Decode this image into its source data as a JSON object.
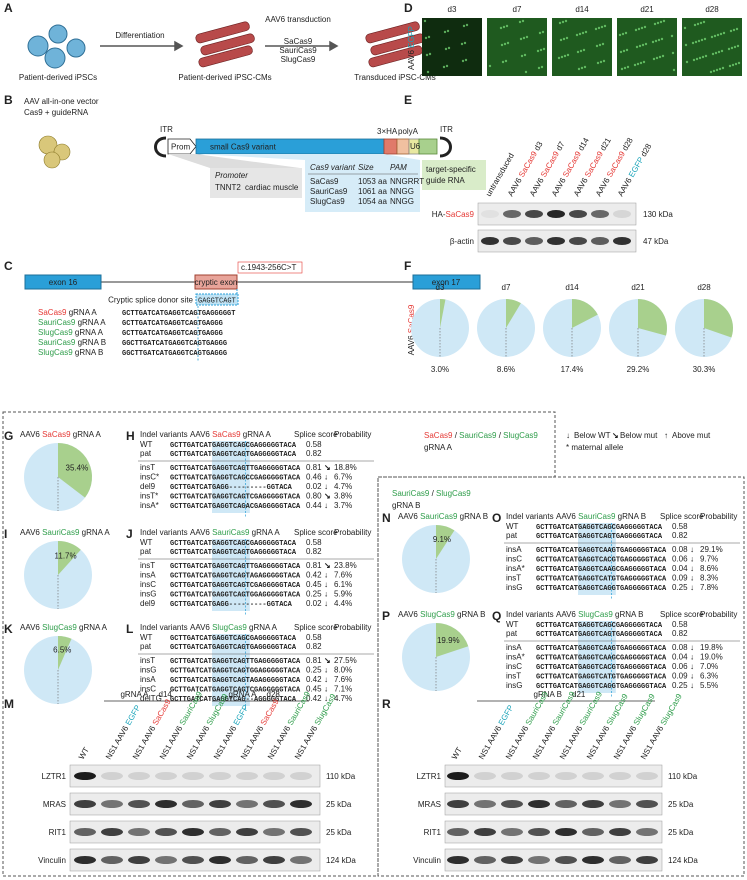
{
  "colors": {
    "SaCas9": "#e53935",
    "SauriCas9": "#2e9d4a",
    "SlugCas9": "#2e9d4a",
    "EGFP": "#17a2b8"
  },
  "panel_a": {
    "letter": "A",
    "source": "Patient-derived iPSCs",
    "step1": "Differentiation",
    "intermediate": "Patient-derived iPSC-CMs",
    "step2": "AAV6 transduction",
    "variants": [
      "SaCas9",
      "SauriCas9",
      "SlugCas9"
    ],
    "result": "Transduced iPSC-CMs"
  },
  "panel_b": {
    "letter": "B",
    "title": [
      "AAV all-in-one vector",
      "Cas9 + guideRNA"
    ],
    "itr": "ITR",
    "prom": "Prom",
    "cas9": "small Cas9 variant",
    "tag": "3×HA",
    "polya": "polyA",
    "u6": "U6",
    "promoter_header": "Promoter",
    "promoter": [
      "TNNT2",
      "cardiac muscle"
    ],
    "table_header": [
      "Cas9 variant",
      "Size",
      "PAM"
    ],
    "table_rows": [
      [
        "SaCas9",
        "1053 aa",
        "NNGRRT"
      ],
      [
        "SauriCas9",
        "1061 aa",
        "NNGG"
      ],
      [
        "SlugCas9",
        "1054 aa",
        "NNGG"
      ]
    ],
    "guide": [
      "target-specific",
      "guide RNA"
    ]
  },
  "panel_c": {
    "letter": "C",
    "exon_left": "exon 16",
    "cryptic": "cryptic exon",
    "mutation": "c.1943-256C>T",
    "exon_right": "exon 17",
    "site_label": "Cryptic splice donor site",
    "site": "GAGGTCAGT",
    "guides": [
      {
        "name": [
          "SaCas9",
          " gRNA A"
        ],
        "seq": "GCTTGATCATGAGGTCAGTGAGGGGGT"
      },
      {
        "name": [
          "SauriCas9",
          " gRNA A"
        ],
        "seq": "GCTTGATCATGAGGTCAGTGAGGG"
      },
      {
        "name": [
          "SlugCas9",
          " gRNA A"
        ],
        "seq": "GCTTGATCATGAGGTCAGTGAGGG"
      },
      {
        "name": [
          "SauriCas9",
          " gRNA B"
        ],
        "seq": "GGCTTGATCATGAGGTCAGTGAGGG"
      },
      {
        "name": [
          "SlugCas9",
          " gRNA B"
        ],
        "seq": "GGCTTGATCATGAGGTCAGTGAGGG"
      }
    ]
  },
  "panel_d": {
    "letter": "D",
    "label": [
      "AAV6 ",
      "EGFP"
    ],
    "days": [
      "d3",
      "d7",
      "d14",
      "d21",
      "d28"
    ]
  },
  "panel_e": {
    "letter": "E",
    "lanes": [
      "untransduced",
      [
        "AAV6 ",
        "SaCas9",
        " d3"
      ],
      [
        "AAV6 ",
        "SaCas9",
        " d7"
      ],
      [
        "AAV6 ",
        "SaCas9",
        " d14"
      ],
      [
        "AAV6 ",
        "SaCas9",
        " d21"
      ],
      [
        "AAV6 ",
        "SaCas9",
        " d28"
      ],
      [
        "AAV6 ",
        "EGFP",
        " d28"
      ]
    ],
    "bands": [
      {
        "name": [
          "HA-",
          "SaCas9"
        ],
        "size": "130 kDa"
      },
      {
        "name": "β-actin",
        "size": "47 kDa"
      }
    ]
  },
  "panel_f": {
    "letter": "F",
    "label": [
      "AAV6 ",
      "SaCas9"
    ],
    "days": [
      "d3",
      "d7",
      "d14",
      "d21",
      "d28"
    ],
    "values": [
      3.0,
      8.6,
      17.4,
      29.2,
      30.3
    ],
    "value_labels": [
      "3.0%",
      "8.6%",
      "17.4%",
      "29.2%",
      "30.3%"
    ]
  },
  "legend": {
    "group_a": [
      "SaCas9",
      " / ",
      "SauriCas9",
      " / ",
      "SlugCas9"
    ],
    "group_a_guide": "gRNA A",
    "group_b": [
      "SauriCas9",
      " / ",
      "SlugCas9"
    ],
    "group_b_guide": "gRNA B",
    "arrows": [
      {
        "arrow": "↓",
        "label": "Below WT",
        "color": "#2e9d4a"
      },
      {
        "arrow": "↘",
        "label": "Below mut",
        "color": "#9acd32"
      },
      {
        "arrow": "↑",
        "label": "Above mut",
        "color": "#e53935"
      }
    ],
    "note": "* maternal allele"
  },
  "pies": [
    {
      "letter": "G",
      "title": [
        "AAV6 ",
        "SaCas9",
        " gRNA A"
      ],
      "value": 35.4,
      "value_label": "35.4%"
    },
    {
      "letter": "I",
      "title": [
        "AAV6 ",
        "SauriCas9",
        " gRNA A"
      ],
      "value": 11.7,
      "value_label": "11.7%"
    },
    {
      "letter": "K",
      "title": [
        "AAV6 ",
        "SlugCas9",
        " gRNA A"
      ],
      "value": 6.5,
      "value_label": "6.5%"
    },
    {
      "letter": "N",
      "title": [
        "AAV6 ",
        "SauriCas9",
        " gRNA B"
      ],
      "value": 9.1,
      "value_label": "9.1%"
    },
    {
      "letter": "P",
      "title": [
        "AAV6 ",
        "SlugCas9",
        " gRNA B"
      ],
      "value": 19.9,
      "value_label": "19.9%"
    }
  ],
  "tables": [
    {
      "letter": "H",
      "columns": [
        "Indel variants",
        "Splice score",
        "Probability"
      ],
      "title": [
        "AAV6 ",
        "SaCas9",
        " gRNA A"
      ],
      "reference": [
        {
          "name": "WT",
          "seq": "GCTTGATCATGAGGTCAGCGAGGGGGTACA",
          "score": "0.58"
        },
        {
          "name": "pat",
          "seq": "GCTTGATCATGAGGTCAGTGAGGGGGTACA",
          "score": "0.82"
        }
      ],
      "rows": [
        {
          "name": "insT",
          "seq": "GCTTGATCATGAGGTCAGTTGAGGGGGTACA",
          "score": "0.81",
          "arrow": "↘",
          "prob": "18.8%"
        },
        {
          "name": "insC*",
          "seq": "GCTTGATCATGAGGTCAGCCGAGGGGGTACA",
          "score": "0.46",
          "arrow": "↓",
          "prob": "6.7%"
        },
        {
          "name": "del9",
          "seq": "GCTTGATCATGAGG---------GGTACA",
          "score": "0.02",
          "arrow": "↓",
          "prob": "4.7%"
        },
        {
          "name": "insT*",
          "seq": "GCTTGATCATGAGGTCAGTCGAGGGGGTACA",
          "score": "0.80",
          "arrow": "↘",
          "prob": "3.8%"
        },
        {
          "name": "insA*",
          "seq": "GCTTGATCATGAGGTCAGACGAGGGGGTACA",
          "score": "0.44",
          "arrow": "↓",
          "prob": "3.7%"
        }
      ]
    },
    {
      "letter": "J",
      "columns": [
        "Indel variants",
        "Splice score",
        "Probability"
      ],
      "title": [
        "AAV6 ",
        "SauriCas9",
        " gRNA A"
      ],
      "reference": [
        {
          "name": "WT",
          "seq": "GCTTGATCATGAGGTCAGCGAGGGGGTACA",
          "score": "0.58"
        },
        {
          "name": "pat",
          "seq": "GCTTGATCATGAGGTCAGTGAGGGGGTACA",
          "score": "0.82"
        }
      ],
      "rows": [
        {
          "name": "insT",
          "seq": "GCTTGATCATGAGGTCAGTTGAGGGGGTACA",
          "score": "0.81",
          "arrow": "↘",
          "prob": "23.8%"
        },
        {
          "name": "insA",
          "seq": "GCTTGATCATGAGGTCAGTAGAGGGGGTACA",
          "score": "0.42",
          "arrow": "↓",
          "prob": "7.6%"
        },
        {
          "name": "insC",
          "seq": "GCTTGATCATGAGGTCAGTCGAGGGGGTACA",
          "score": "0.45",
          "arrow": "↓",
          "prob": "6.1%"
        },
        {
          "name": "insG",
          "seq": "GCTTGATCATGAGGTCAGTGGAGGGGGTACA",
          "score": "0.25",
          "arrow": "↓",
          "prob": "5.9%"
        },
        {
          "name": "del9",
          "seq": "GCTTGATCATGAGG---------GGTACA",
          "score": "0.02",
          "arrow": "↓",
          "prob": "4.4%"
        }
      ]
    },
    {
      "letter": "L",
      "columns": [
        "Indel variants",
        "Splice score",
        "Probability"
      ],
      "title": [
        "AAV6 ",
        "SlugCas9",
        " gRNA A"
      ],
      "reference": [
        {
          "name": "WT",
          "seq": "GCTTGATCATGAGGTCAGCGAGGGGGTACA",
          "score": "0.58"
        },
        {
          "name": "pat",
          "seq": "GCTTGATCATGAGGTCAGTGAGGGGGTACA",
          "score": "0.82"
        }
      ],
      "rows": [
        {
          "name": "insT",
          "seq": "GCTTGATCATGAGGTCAGTTGAGGGGGTACA",
          "score": "0.81",
          "arrow": "↘",
          "prob": "27.5%"
        },
        {
          "name": "insG",
          "seq": "GCTTGATCATGAGGTCAGTGGAGGGGGTACA",
          "score": "0.25",
          "arrow": "↓",
          "prob": "8.0%"
        },
        {
          "name": "insA",
          "seq": "GCTTGATCATGAGGTCAGTAGAGGGGGTACA",
          "score": "0.42",
          "arrow": "↓",
          "prob": "7.6%"
        },
        {
          "name": "insC",
          "seq": "GCTTGATCATGAGGTCAGTCGAGGGGGTACA",
          "score": "0.45",
          "arrow": "↓",
          "prob": "7.1%"
        },
        {
          "name": "delTG",
          "seq": "GCTTGATCATGAGGTCAG--AGGGGGTACA",
          "score": "0.42",
          "arrow": "↓",
          "prob": "4.7%"
        }
      ]
    },
    {
      "letter": "O",
      "columns": [
        "Indel variants",
        "Splice score",
        "Probability"
      ],
      "title": [
        "AAV6 ",
        "SauriCas9",
        " gRNA B"
      ],
      "reference": [
        {
          "name": "WT",
          "seq": "GCTTGATCATGAGGTCAGCGAGGGGGTACA",
          "score": "0.58"
        },
        {
          "name": "pat",
          "seq": "GCTTGATCATGAGGTCAGTGAGGGGGTACA",
          "score": "0.82"
        }
      ],
      "rows": [
        {
          "name": "insA",
          "seq": "GCTTGATCATGAGGTCAAGTGAGGGGGTACA",
          "score": "0.08",
          "arrow": "↓",
          "prob": "29.1%"
        },
        {
          "name": "insC",
          "seq": "GCTTGATCATGAGGTCACGTGAGGGGGTACA",
          "score": "0.06",
          "arrow": "↓",
          "prob": "9.7%"
        },
        {
          "name": "insA*",
          "seq": "GCTTGATCATGAGGTCAAGCGAGGGGGTACA",
          "score": "0.04",
          "arrow": "↓",
          "prob": "8.6%"
        },
        {
          "name": "insT",
          "seq": "GCTTGATCATGAGGTCATGTGAGGGGGTACA",
          "score": "0.09",
          "arrow": "↓",
          "prob": "8.3%"
        },
        {
          "name": "insG",
          "seq": "GCTTGATCATGAGGTCAGGTGAGGGGGTACA",
          "score": "0.25",
          "arrow": "↓",
          "prob": "7.8%"
        }
      ]
    },
    {
      "letter": "Q",
      "columns": [
        "Indel variants",
        "Splice score",
        "Probability"
      ],
      "title": [
        "AAV6 ",
        "SlugCas9",
        " gRNA B"
      ],
      "reference": [
        {
          "name": "WT",
          "seq": "GCTTGATCATGAGGTCAGCGAGGGGGTACA",
          "score": "0.58"
        },
        {
          "name": "pat",
          "seq": "GCTTGATCATGAGGTCAGTGAGGGGGTACA",
          "score": "0.82"
        }
      ],
      "rows": [
        {
          "name": "insA",
          "seq": "GCTTGATCATGAGGTCAAGTGAGGGGGTACA",
          "score": "0.08",
          "arrow": "↓",
          "prob": "19.8%"
        },
        {
          "name": "insA*",
          "seq": "GCTTGATCATGAGGTCAAGCGAGGGGGTACA",
          "score": "0.04",
          "arrow": "↓",
          "prob": "19.0%"
        },
        {
          "name": "insC",
          "seq": "GCTTGATCATGAGGTCACGTGAGGGGGTACA",
          "score": "0.06",
          "arrow": "↓",
          "prob": "7.0%"
        },
        {
          "name": "insT",
          "seq": "GCTTGATCATGAGGTCATGTGAGGGGGTACA",
          "score": "0.09",
          "arrow": "↓",
          "prob": "6.3%"
        },
        {
          "name": "insG",
          "seq": "GCTTGATCATGAGGTCAGGTGAGGGGGTACA",
          "score": "0.25",
          "arrow": "↓",
          "prob": "5.5%"
        }
      ]
    }
  ],
  "blots": [
    {
      "letter": "M",
      "groups": [
        {
          "guide": "gRNA A",
          "day": "d14"
        },
        {
          "guide": "gRNA A",
          "day": "d28"
        }
      ],
      "lanes": [
        "WT",
        [
          "NS1 AAV6 ",
          "EGFP"
        ],
        [
          "NS1 AAV6 ",
          "SaCas9"
        ],
        [
          "NS1 AAV6 ",
          "SauriCas9"
        ],
        [
          "NS1 AAV6 ",
          "SlugCas9"
        ],
        [
          "NS1 AAV6 ",
          "EGFP"
        ],
        [
          "NS1 AAV6 ",
          "SaCas9"
        ],
        [
          "NS1 AAV6 ",
          "SauriCas9"
        ],
        [
          "NS1 AAV6 ",
          "SlugCas9"
        ]
      ],
      "proteins": [
        {
          "name": "LZTR1",
          "size": "110 kDa"
        },
        {
          "name": "MRAS",
          "size": "25 kDa"
        },
        {
          "name": "RIT1",
          "size": "25 kDa"
        },
        {
          "name": "Vinculin",
          "size": "124 kDa"
        }
      ]
    },
    {
      "letter": "R",
      "groups": [
        {
          "guide": "gRNA B",
          "day": "d21"
        }
      ],
      "lanes": [
        "WT",
        [
          "NS1 AAV6 ",
          "EGFP"
        ],
        [
          "NS1 AAV6 ",
          "SauriCas9"
        ],
        [
          "NS1 AAV6 ",
          "SauriCas9"
        ],
        [
          "NS1 AAV6 ",
          "SauriCas9"
        ],
        [
          "NS1 AAV6 ",
          "SlugCas9"
        ],
        [
          "NS1 AAV6 ",
          "SlugCas9"
        ],
        [
          "NS1 AAV6 ",
          "SlugCas9"
        ]
      ],
      "proteins": [
        {
          "name": "LZTR1",
          "size": "110 kDa"
        },
        {
          "name": "MRAS",
          "size": "25 kDa"
        },
        {
          "name": "RIT1",
          "size": "25 kDa"
        },
        {
          "name": "Vinculin",
          "size": "124 kDa"
        }
      ]
    }
  ]
}
